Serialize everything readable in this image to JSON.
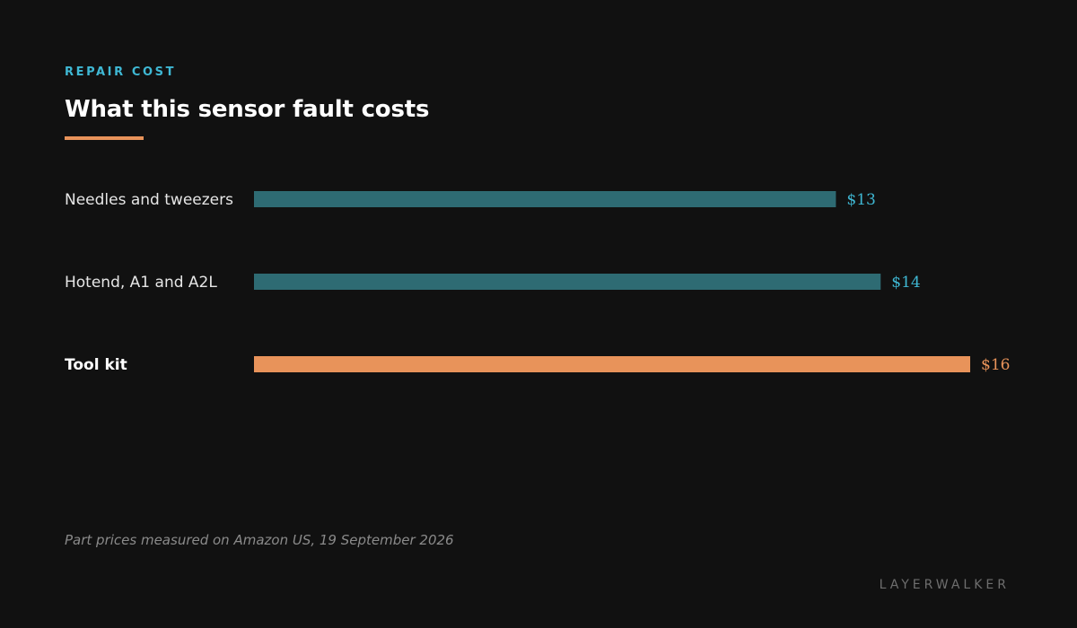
{
  "header": {
    "eyebrow": "REPAIR COST",
    "title": "What this sensor fault costs"
  },
  "footer": {
    "note": "Part prices measured on Amazon US, 19 September 2026",
    "brand": "LAYERWALKER"
  },
  "colors": {
    "background": "#111111",
    "accent": "#e8935a",
    "primary": "#2e6b73",
    "primary_label": "#3fb8d4",
    "muted_text": "#e6e6e6",
    "highlight_text": "#ffffff"
  },
  "chart_data": {
    "type": "bar",
    "orientation": "horizontal",
    "categories": [
      "Needles and tweezers",
      "Hotend, A1 and A2L",
      "Tool kit"
    ],
    "values": [
      13,
      14,
      16
    ],
    "value_labels": [
      "$13",
      "$14",
      "$16"
    ],
    "highlight": [
      false,
      false,
      true
    ],
    "xlim": [
      0,
      16
    ],
    "grid": false,
    "legend": "none"
  }
}
